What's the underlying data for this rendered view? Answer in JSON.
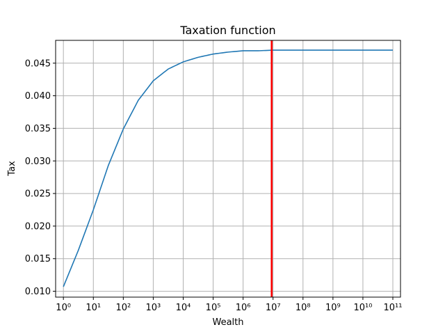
{
  "chart_data": {
    "type": "line",
    "title": "Taxation function",
    "xlabel": "Wealth",
    "ylabel": "Tax",
    "x_scale": "log",
    "xlim": [
      0.55,
      180000000000.0
    ],
    "ylim": [
      0.0091,
      0.0485
    ],
    "grid": true,
    "x_ticks": [
      {
        "value": 1,
        "label": "10⁰"
      },
      {
        "value": 10,
        "label": "10¹"
      },
      {
        "value": 100,
        "label": "10²"
      },
      {
        "value": 1000,
        "label": "10³"
      },
      {
        "value": 10000,
        "label": "10⁴"
      },
      {
        "value": 100000,
        "label": "10⁵"
      },
      {
        "value": 1000000,
        "label": "10⁶"
      },
      {
        "value": 10000000,
        "label": "10⁷"
      },
      {
        "value": 100000000,
        "label": "10⁸"
      },
      {
        "value": 1000000000,
        "label": "10⁹"
      },
      {
        "value": 10000000000,
        "label": "10¹⁰"
      },
      {
        "value": 100000000000,
        "label": "10¹¹"
      }
    ],
    "y_ticks": [
      {
        "value": 0.01,
        "label": "0.010"
      },
      {
        "value": 0.015,
        "label": "0.015"
      },
      {
        "value": 0.02,
        "label": "0.020"
      },
      {
        "value": 0.025,
        "label": "0.025"
      },
      {
        "value": 0.03,
        "label": "0.030"
      },
      {
        "value": 0.035,
        "label": "0.035"
      },
      {
        "value": 0.04,
        "label": "0.040"
      },
      {
        "value": 0.045,
        "label": "0.045"
      }
    ],
    "series": [
      {
        "color": "#1f77b4",
        "x": [
          1,
          3.16,
          10,
          31.6,
          100,
          316,
          1000,
          3160,
          10000,
          31600,
          100000,
          316000,
          1000000,
          3160000,
          10000000,
          100000000,
          1000000000,
          10000000000,
          100000000000
        ],
        "y": [
          0.0107,
          0.0163,
          0.0225,
          0.0293,
          0.0349,
          0.0393,
          0.0423,
          0.0441,
          0.0452,
          0.0459,
          0.0464,
          0.0467,
          0.0469,
          0.0469,
          0.047,
          0.047,
          0.047,
          0.047,
          0.047
        ]
      }
    ],
    "vertical_line": {
      "x": 9000000,
      "color": "#ff0000"
    }
  }
}
